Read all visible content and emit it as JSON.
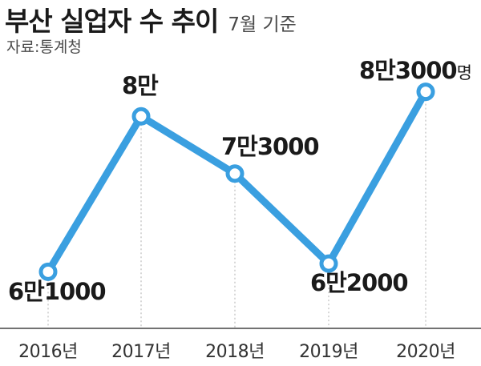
{
  "header": {
    "title": "부산 실업자 수 추이",
    "subtitle": "7월 기준",
    "source": "자료:통계청"
  },
  "colors": {
    "line": "#3a9fe0",
    "marker_fill": "#ffffff",
    "guide": "#b0b0b0",
    "baseline": "#444444"
  },
  "chart_data": {
    "type": "line",
    "categories": [
      "2016년",
      "2017년",
      "2018년",
      "2019년",
      "2020년"
    ],
    "values": [
      61000,
      80000,
      73000,
      62000,
      83000
    ],
    "data_labels": [
      "6만1000",
      "8만",
      "7만3000",
      "6만2000",
      "8만3000"
    ],
    "unit_suffix": "명",
    "ylim": [
      58000,
      86000
    ],
    "grid": false,
    "legend": "none"
  }
}
